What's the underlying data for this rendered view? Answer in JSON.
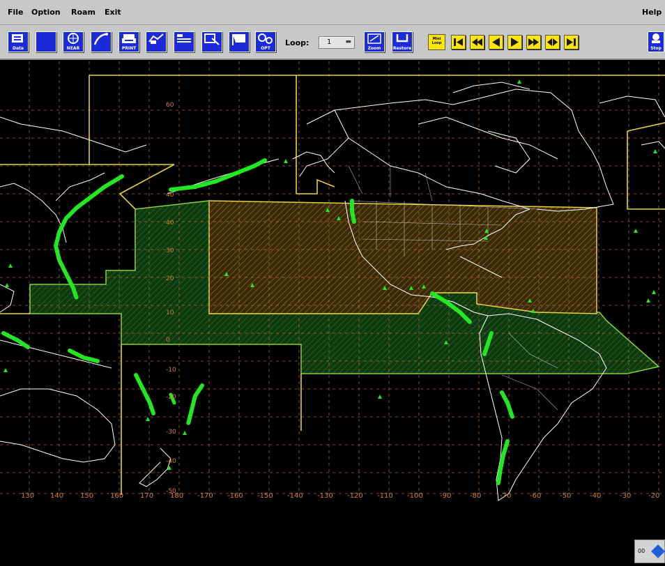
{
  "menu": {
    "file": "File",
    "option": "Option",
    "roam": "Roam",
    "exit": "Exit",
    "help": "Help"
  },
  "toolbar": {
    "buttons": [
      {
        "label": "Data",
        "icon": "data-icon"
      },
      {
        "label": "",
        "icon": "blank-icon"
      },
      {
        "label": "NEAR",
        "icon": "near-icon"
      },
      {
        "label": "",
        "icon": "trajectory-icon"
      },
      {
        "label": "PRINT",
        "icon": "print-icon"
      },
      {
        "label": "",
        "icon": "overlay-icon"
      },
      {
        "label": "",
        "icon": "legend-icon"
      },
      {
        "label": "",
        "icon": "select-icon"
      },
      {
        "label": "",
        "icon": "flag-icon"
      },
      {
        "label": "OPT",
        "icon": "options-icon"
      }
    ],
    "loop_label": "Loop:",
    "loop_value": "1",
    "zoom_label": "Zoom",
    "restore_label": "Restore",
    "mode_label": "Mini Loop",
    "stop_label": "Stop",
    "anim_controls": [
      "first-frame-icon",
      "rewind-icon",
      "step-back-icon",
      "step-forward-icon",
      "fast-forward-icon",
      "rock-icon",
      "last-frame-icon"
    ]
  },
  "map": {
    "lon_labels": [
      "130",
      "140",
      "150",
      "160",
      "170",
      "180",
      "-170",
      "-160",
      "-150",
      "-140",
      "-130",
      "-120",
      "-110",
      "-100",
      "-90",
      "-80",
      "-70",
      "-60",
      "-50",
      "-40",
      "-30",
      "-20"
    ],
    "lat_labels": [
      "60",
      "40",
      "40",
      "30",
      "20",
      "10",
      "0",
      "-10",
      "-20",
      "-30",
      "-40",
      "-50"
    ],
    "colors": {
      "background": "#000000",
      "coastline": "#ffffff",
      "sector_border": "#e6d23c",
      "grid": "#c87832",
      "hatch_region": "#5a4a1a",
      "green_region": "#1e5a1e",
      "observation_markers": "#22e822"
    }
  },
  "corner_widget": {
    "text": "00"
  }
}
